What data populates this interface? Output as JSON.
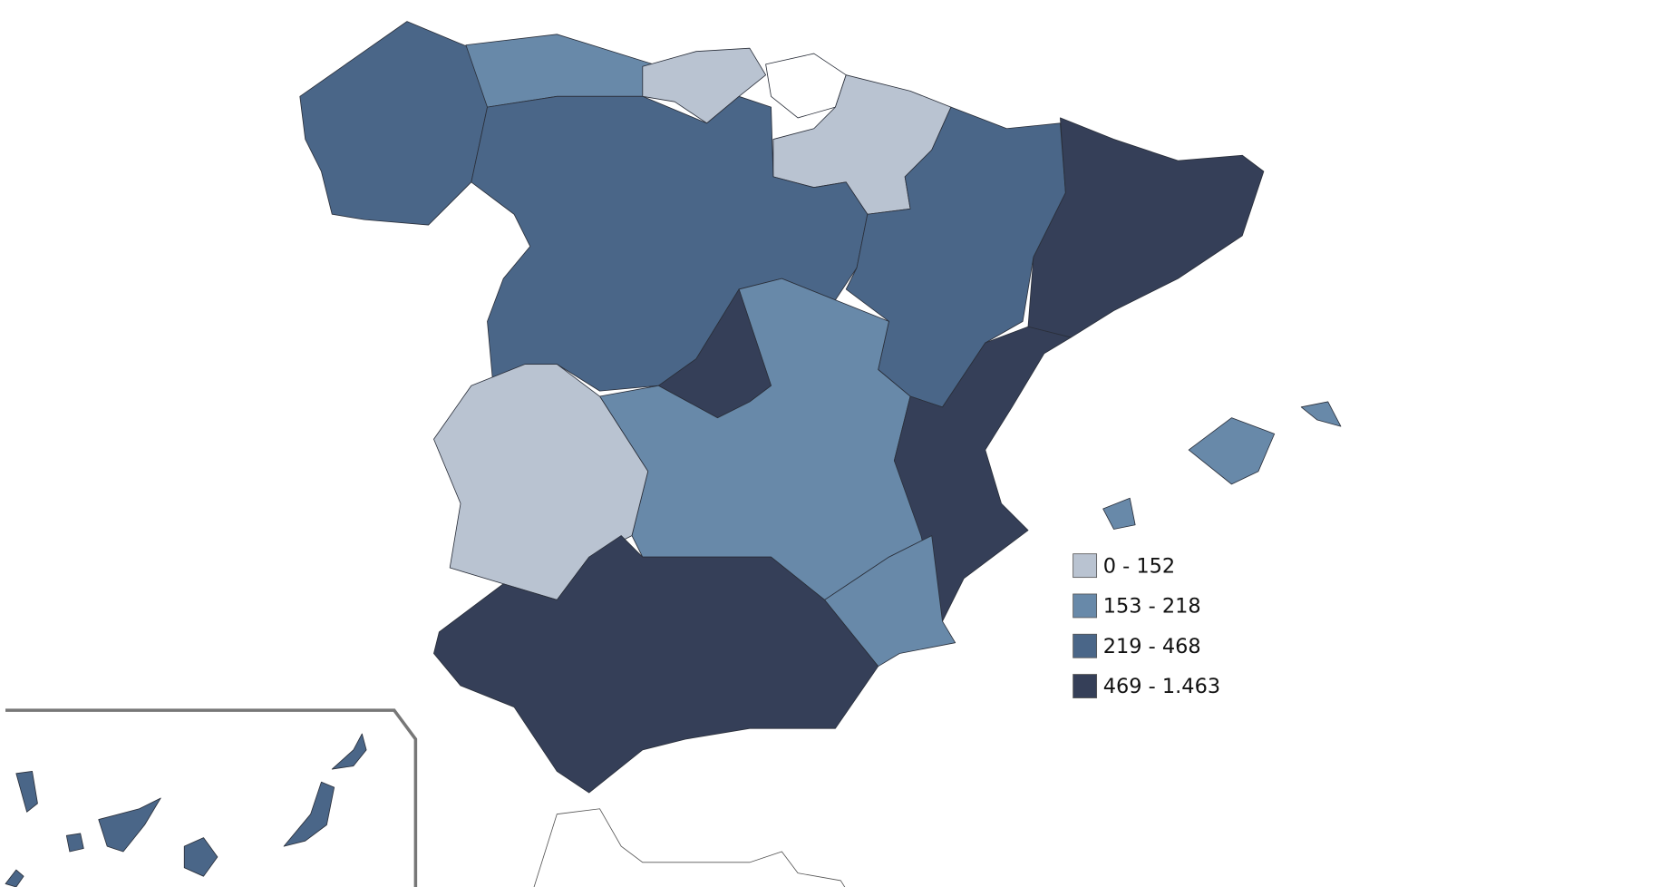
{
  "legend": {
    "items": [
      {
        "label": "0 - 152",
        "color": "#b9c3d1"
      },
      {
        "label": "153 - 218",
        "color": "#6889a9"
      },
      {
        "label": "219 - 468",
        "color": "#4a6688"
      },
      {
        "label": "469 - 1.463",
        "color": "#353f58"
      }
    ]
  }
}
